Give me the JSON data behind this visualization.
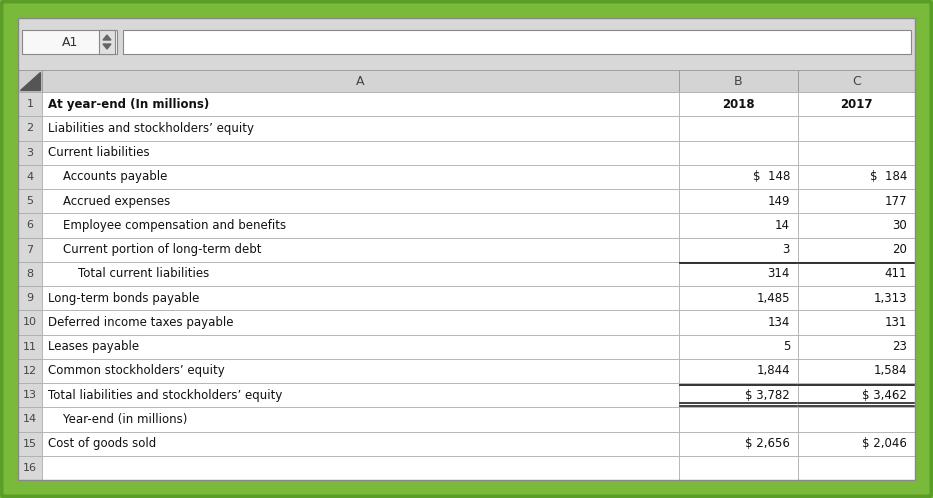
{
  "bg_outer": "#7aba3a",
  "bg_inner": "#e8e8e8",
  "cell_white": "#ffffff",
  "cell_header_gray": "#d4d4d4",
  "row_num_gray": "#d8d8d8",
  "border_color": "#aaaaaa",
  "dark_border": "#333333",
  "col_headers": [
    "A",
    "B",
    "C"
  ],
  "rows": [
    {
      "num": "1",
      "label": "At year-end (In millions)",
      "b": "2018",
      "c": "2017",
      "bold_label": true,
      "bold_bc": true,
      "b_align": "center",
      "top_border_bc": false,
      "bottom_border_bc": false
    },
    {
      "num": "2",
      "label": "Liabilities and stockholders’ equity",
      "b": "",
      "c": "",
      "bold_label": false,
      "bold_bc": false,
      "b_align": "right",
      "top_border_bc": false,
      "bottom_border_bc": false
    },
    {
      "num": "3",
      "label": "Current liabilities",
      "b": "",
      "c": "",
      "bold_label": false,
      "bold_bc": false,
      "b_align": "right",
      "top_border_bc": false,
      "bottom_border_bc": false
    },
    {
      "num": "4",
      "label": "    Accounts payable",
      "b": "$  148",
      "c": "$  184",
      "bold_label": false,
      "bold_bc": false,
      "b_align": "right",
      "top_border_bc": false,
      "bottom_border_bc": false
    },
    {
      "num": "5",
      "label": "    Accrued expenses",
      "b": "149",
      "c": "177",
      "bold_label": false,
      "bold_bc": false,
      "b_align": "right",
      "top_border_bc": false,
      "bottom_border_bc": false
    },
    {
      "num": "6",
      "label": "    Employee compensation and benefits",
      "b": "14",
      "c": "30",
      "bold_label": false,
      "bold_bc": false,
      "b_align": "right",
      "top_border_bc": false,
      "bottom_border_bc": false
    },
    {
      "num": "7",
      "label": "    Current portion of long-term debt",
      "b": "3",
      "c": "20",
      "bold_label": false,
      "bold_bc": false,
      "b_align": "right",
      "top_border_bc": false,
      "bottom_border_bc": false
    },
    {
      "num": "8",
      "label": "        Total current liabilities",
      "b": "314",
      "c": "411",
      "bold_label": false,
      "bold_bc": false,
      "b_align": "right",
      "top_border_bc": true,
      "bottom_border_bc": false
    },
    {
      "num": "9",
      "label": "Long-term bonds payable",
      "b": "1,485",
      "c": "1,313",
      "bold_label": false,
      "bold_bc": false,
      "b_align": "right",
      "top_border_bc": false,
      "bottom_border_bc": false
    },
    {
      "num": "10",
      "label": "Deferred income taxes payable",
      "b": "134",
      "c": "131",
      "bold_label": false,
      "bold_bc": false,
      "b_align": "right",
      "top_border_bc": false,
      "bottom_border_bc": false
    },
    {
      "num": "11",
      "label": "Leases payable",
      "b": "5",
      "c": "23",
      "bold_label": false,
      "bold_bc": false,
      "b_align": "right",
      "top_border_bc": false,
      "bottom_border_bc": false
    },
    {
      "num": "12",
      "label": "Common stockholders’ equity",
      "b": "1,844",
      "c": "1,584",
      "bold_label": false,
      "bold_bc": false,
      "b_align": "right",
      "top_border_bc": false,
      "bottom_border_bc": false
    },
    {
      "num": "13",
      "label": "Total liabilities and stockholders’ equity",
      "b": "$ 3,782",
      "c": "$ 3,462",
      "bold_label": false,
      "bold_bc": false,
      "b_align": "right",
      "top_border_bc": true,
      "bottom_border_bc": true
    },
    {
      "num": "14",
      "label": "    Year-end (in millions)",
      "b": "",
      "c": "",
      "bold_label": false,
      "bold_bc": false,
      "b_align": "right",
      "top_border_bc": false,
      "bottom_border_bc": false
    },
    {
      "num": "15",
      "label": "Cost of goods sold",
      "b": "$ 2,656",
      "c": "$ 2,046",
      "bold_label": false,
      "bold_bc": false,
      "b_align": "right",
      "top_border_bc": false,
      "bottom_border_bc": false
    },
    {
      "num": "16",
      "label": "",
      "b": "",
      "c": "",
      "bold_label": false,
      "bold_bc": false,
      "b_align": "right",
      "top_border_bc": false,
      "bottom_border_bc": false
    }
  ],
  "figsize": [
    9.33,
    4.98
  ],
  "dpi": 100
}
